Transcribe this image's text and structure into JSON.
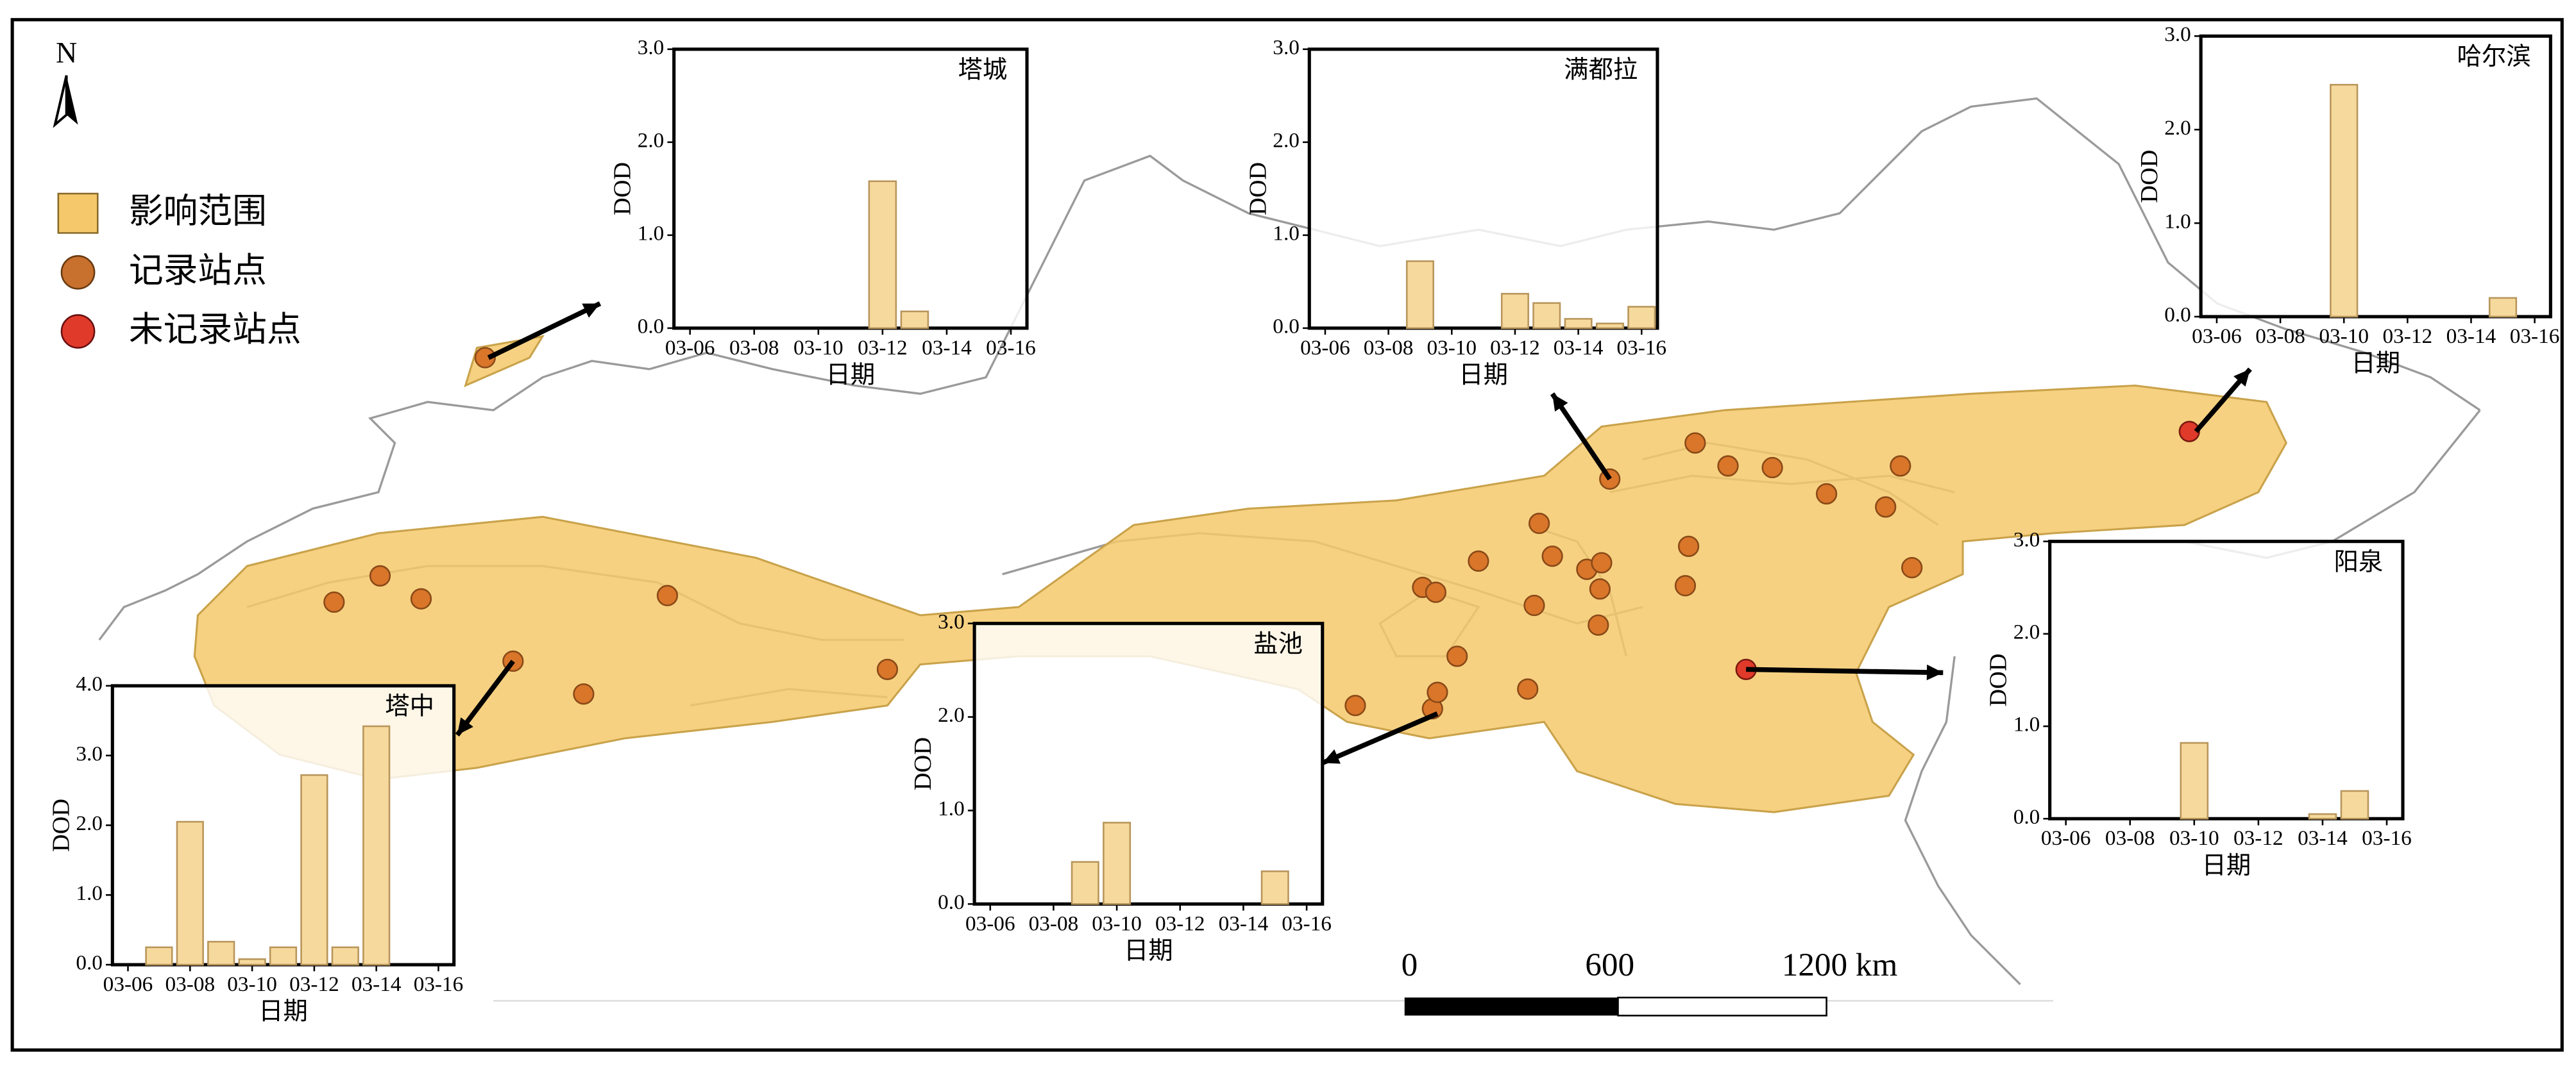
{
  "map": {
    "north": "N",
    "legend": [
      "影响范围",
      "记录站点",
      "未记录站点"
    ],
    "scale_bar": [
      "0",
      "600",
      "1200 km"
    ]
  },
  "chart_data": [
    {
      "type": "bar",
      "title": "塔城",
      "xlabel": "日期",
      "ylabel": "DOD",
      "color": "#f6d99c",
      "categories": [
        "03-06",
        null,
        "03-08",
        null,
        "03-10",
        null,
        "03-12",
        null,
        "03-14",
        null,
        "03-16"
      ],
      "values": [
        null,
        null,
        null,
        null,
        null,
        null,
        1.58,
        0.18,
        null,
        null,
        null
      ],
      "ylim": [
        0,
        3
      ],
      "yticks": [
        {
          "value": 0,
          "label": "0.0"
        },
        {
          "value": 1,
          "label": "1.0"
        },
        {
          "value": 2,
          "label": "2.0"
        },
        {
          "value": 3,
          "label": "3.0"
        }
      ]
    },
    {
      "type": "bar",
      "title": "满都拉",
      "xlabel": "日期",
      "ylabel": "DOD",
      "color": "#f6d99c",
      "categories": [
        "03-06",
        null,
        "03-08",
        null,
        "03-10",
        null,
        "03-12",
        null,
        "03-14",
        null,
        "03-16"
      ],
      "values": [
        null,
        null,
        null,
        0.72,
        null,
        null,
        0.37,
        0.27,
        0.1,
        0.05,
        0.23
      ],
      "ylim": [
        0,
        3
      ],
      "yticks": [
        {
          "value": 0,
          "label": "0.0"
        },
        {
          "value": 1,
          "label": "1.0"
        },
        {
          "value": 2,
          "label": "2.0"
        },
        {
          "value": 3,
          "label": "3.0"
        }
      ]
    },
    {
      "type": "bar",
      "title": "哈尔滨",
      "xlabel": "日期",
      "ylabel": "DOD",
      "color": "#f6d99c",
      "categories": [
        "03-06",
        null,
        "03-08",
        null,
        "03-10",
        null,
        "03-12",
        null,
        "03-14",
        null,
        "03-16"
      ],
      "values": [
        null,
        null,
        null,
        null,
        2.48,
        null,
        null,
        null,
        null,
        0.2,
        null
      ],
      "ylim": [
        0,
        3
      ],
      "yticks": [
        {
          "value": 0,
          "label": "0.0"
        },
        {
          "value": 1,
          "label": "1.0"
        },
        {
          "value": 2,
          "label": "2.0"
        },
        {
          "value": 3,
          "label": "3.0"
        }
      ]
    },
    {
      "type": "bar",
      "title": "盐池",
      "xlabel": "日期",
      "ylabel": "DOD",
      "color": "#f6d99c",
      "categories": [
        "03-06",
        null,
        "03-08",
        null,
        "03-10",
        null,
        "03-12",
        null,
        "03-14",
        null,
        "03-16"
      ],
      "values": [
        null,
        null,
        null,
        0.45,
        0.87,
        null,
        null,
        null,
        null,
        0.35,
        null
      ],
      "ylim": [
        0,
        3
      ],
      "yticks": [
        {
          "value": 0,
          "label": "0.0"
        },
        {
          "value": 1,
          "label": "1.0"
        },
        {
          "value": 2,
          "label": "2.0"
        },
        {
          "value": 3,
          "label": "3.0"
        }
      ]
    },
    {
      "type": "bar",
      "title": "塔中",
      "xlabel": "日期",
      "ylabel": "DOD",
      "color": "#f6d99c",
      "categories": [
        "03-06",
        null,
        "03-08",
        null,
        "03-10",
        null,
        "03-12",
        null,
        "03-14",
        null,
        "03-16"
      ],
      "values": [
        null,
        0.25,
        2.05,
        0.33,
        0.08,
        0.25,
        2.72,
        0.25,
        3.42,
        null,
        null
      ],
      "ylim": [
        0,
        4
      ],
      "yticks": [
        {
          "value": 0,
          "label": "0.0"
        },
        {
          "value": 1,
          "label": "1.0"
        },
        {
          "value": 2,
          "label": "2.0"
        },
        {
          "value": 3,
          "label": "3.0"
        },
        {
          "value": 4,
          "label": "4.0"
        }
      ]
    },
    {
      "type": "bar",
      "title": "阳泉",
      "xlabel": "日期",
      "ylabel": "DOD",
      "color": "#f6d99c",
      "categories": [
        "03-06",
        null,
        "03-08",
        null,
        "03-10",
        null,
        "03-12",
        null,
        "03-14",
        null,
        "03-16"
      ],
      "values": [
        null,
        null,
        null,
        null,
        0.82,
        null,
        null,
        null,
        0.05,
        0.3,
        null
      ],
      "ylim": [
        0,
        3
      ],
      "yticks": [
        {
          "value": 0,
          "label": "0.0"
        },
        {
          "value": 1,
          "label": "1.0"
        },
        {
          "value": 2,
          "label": "2.0"
        },
        {
          "value": 3,
          "label": "3.0"
        }
      ]
    }
  ]
}
